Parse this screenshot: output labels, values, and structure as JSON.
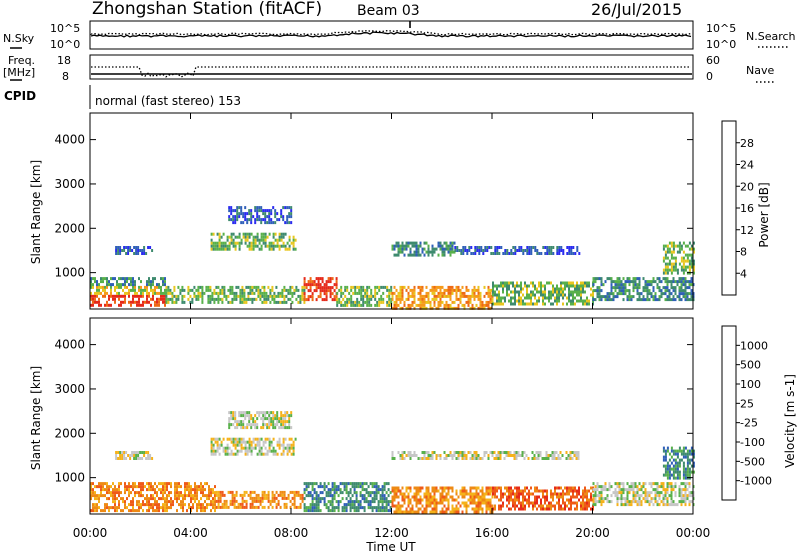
{
  "header": {
    "station": "Zhongshan Station (fitACF)",
    "beam": "Beam 03",
    "date": "26/Jul/2015"
  },
  "noise_panel": {
    "left_label": "N.Sky",
    "right_label": "N.Search",
    "tick_top": "10^5",
    "tick_bottom": "10^0"
  },
  "freq_panel": {
    "left_label_line1": "Freq.",
    "left_label_line2": "[MHz]",
    "left_tick_top": "18",
    "left_tick_bottom": "8",
    "right_label": "Nave",
    "right_tick_top": "60",
    "right_tick_bottom": "0"
  },
  "cpid": {
    "label": "CPID",
    "mode_text": "normal (fast stereo) 153"
  },
  "axes": {
    "xlabel": "Time UT",
    "ylabel": "Slant Range [km]",
    "x_ticks": [
      "00:00",
      "04:00",
      "08:00",
      "12:00",
      "16:00",
      "20:00",
      "00:00"
    ],
    "y_ticks": [
      "1000",
      "2000",
      "3000",
      "4000"
    ]
  },
  "chart_data": [
    {
      "type": "heatmap",
      "panel": "power",
      "colorbar_label": "Power [dB]",
      "colorbar_ticks": [
        "4",
        "8",
        "12",
        "16",
        "20",
        "24",
        "28"
      ],
      "colors": [
        "#2a2af0",
        "#2f5fb8",
        "#3e8a6e",
        "#58b04a",
        "#e8c61e",
        "#f59a1a",
        "#ee6a14",
        "#e52a1a"
      ],
      "x_range_hours": [
        0,
        24
      ],
      "y_range_km": [
        180,
        4600
      ],
      "bands": [
        {
          "t0": 0.0,
          "t1": 3.0,
          "r0": 250,
          "r1": 500,
          "level": 7
        },
        {
          "t0": 0.0,
          "t1": 3.0,
          "r0": 500,
          "r1": 700,
          "level": 4
        },
        {
          "t0": 0.0,
          "t1": 3.0,
          "r0": 700,
          "r1": 900,
          "level": 2
        },
        {
          "t0": 3.0,
          "t1": 8.5,
          "r0": 300,
          "r1": 700,
          "level": 3
        },
        {
          "t0": 8.5,
          "t1": 9.8,
          "r0": 400,
          "r1": 900,
          "level": 7
        },
        {
          "t0": 9.8,
          "t1": 12.0,
          "r0": 250,
          "r1": 700,
          "level": 3
        },
        {
          "t0": 12.0,
          "t1": 16.0,
          "r0": 220,
          "r1": 700,
          "level": 5
        },
        {
          "t0": 16.0,
          "t1": 20.0,
          "r0": 300,
          "r1": 800,
          "level": 3
        },
        {
          "t0": 20.0,
          "t1": 24.0,
          "r0": 400,
          "r1": 900,
          "level": 2
        },
        {
          "t0": 1.0,
          "t1": 2.5,
          "r0": 1400,
          "r1": 1600,
          "level": 1
        },
        {
          "t0": 4.8,
          "t1": 8.2,
          "r0": 1500,
          "r1": 1900,
          "level": 3
        },
        {
          "t0": 5.5,
          "t1": 8.0,
          "r0": 2100,
          "r1": 2500,
          "level": 1
        },
        {
          "t0": 12.0,
          "t1": 14.5,
          "r0": 1400,
          "r1": 1700,
          "level": 2
        },
        {
          "t0": 14.5,
          "t1": 19.5,
          "r0": 1400,
          "r1": 1600,
          "level": 1
        },
        {
          "t0": 22.8,
          "t1": 24.0,
          "r0": 1000,
          "r1": 1700,
          "level": 3
        }
      ]
    },
    {
      "type": "heatmap",
      "panel": "velocity",
      "colorbar_label": "Velocity [m s-1]",
      "colorbar_ticks": [
        "1000",
        "500",
        "100",
        "25",
        "-25",
        "-100",
        "-500",
        "-1000"
      ],
      "colors": [
        "#2a2af0",
        "#2f5fb8",
        "#3e8a6e",
        "#58b04a",
        "#c6c6c6",
        "#f5b21a",
        "#ee8a14",
        "#ef5a18",
        "#e52a1a"
      ],
      "x_range_hours": [
        0,
        24
      ],
      "y_range_km": [
        180,
        4600
      ],
      "bands": [
        {
          "t0": 0.0,
          "t1": 5.0,
          "r0": 250,
          "r1": 900,
          "level": 6
        },
        {
          "t0": 5.0,
          "t1": 8.5,
          "r0": 300,
          "r1": 700,
          "level": 6
        },
        {
          "t0": 8.5,
          "t1": 12.0,
          "r0": 250,
          "r1": 900,
          "level": 2
        },
        {
          "t0": 12.0,
          "t1": 16.0,
          "r0": 220,
          "r1": 800,
          "level": 6
        },
        {
          "t0": 16.0,
          "t1": 20.0,
          "r0": 300,
          "r1": 800,
          "level": 7
        },
        {
          "t0": 20.0,
          "t1": 24.0,
          "r0": 400,
          "r1": 900,
          "level": 4
        },
        {
          "t0": 1.0,
          "t1": 2.5,
          "r0": 1400,
          "r1": 1600,
          "level": 4
        },
        {
          "t0": 4.8,
          "t1": 8.2,
          "r0": 1500,
          "r1": 1900,
          "level": 4
        },
        {
          "t0": 5.5,
          "t1": 8.0,
          "r0": 2100,
          "r1": 2500,
          "level": 4
        },
        {
          "t0": 12.0,
          "t1": 19.5,
          "r0": 1400,
          "r1": 1600,
          "level": 4
        },
        {
          "t0": 22.8,
          "t1": 24.0,
          "r0": 1000,
          "r1": 1700,
          "level": 2
        }
      ]
    }
  ]
}
